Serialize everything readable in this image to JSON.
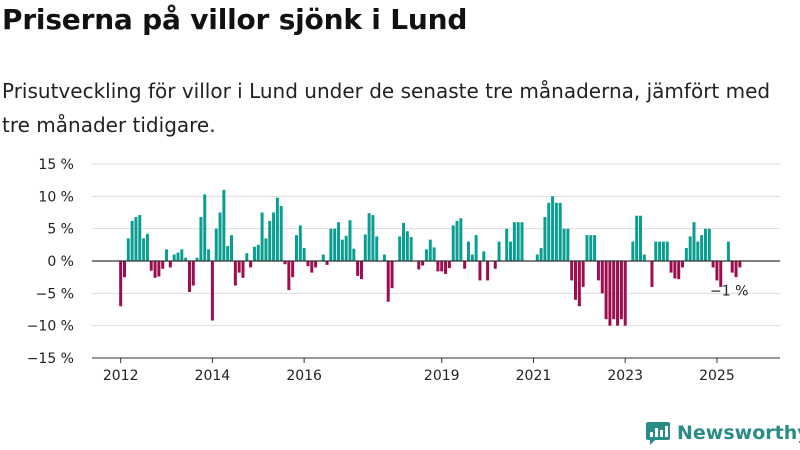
{
  "header": {
    "title": "Priserna på villor sjönk i Lund",
    "subtitle": "Prisutveckling för villor i Lund under de senaste tre månaderna, jämfört med tre månader tidigare."
  },
  "brand": {
    "name": "Newsworthy",
    "icon": "bar-chart-logo-icon",
    "color": "#2a8c86"
  },
  "colors": {
    "positive": "#0a9e91",
    "negative": "#9c0c4e",
    "grid": "#dddddd",
    "baseline": "#333333"
  },
  "chart_data": {
    "type": "bar",
    "xlabel": "",
    "ylabel": "",
    "ylim": [
      -15,
      15
    ],
    "xlim": [
      "2011-06",
      "2026-06"
    ],
    "grid": true,
    "legend": "none",
    "y_ticks": [
      {
        "value": 15,
        "label": "15 %"
      },
      {
        "value": 10,
        "label": "10 %"
      },
      {
        "value": 5,
        "label": "5 %"
      },
      {
        "value": 0,
        "label": "0 %"
      },
      {
        "value": -5,
        "label": "−5 %"
      },
      {
        "value": -10,
        "label": "−10 %"
      },
      {
        "value": -15,
        "label": "−15 %"
      }
    ],
    "x_ticks": [
      {
        "value": "2012-01",
        "label": "2012"
      },
      {
        "value": "2014-01",
        "label": "2014"
      },
      {
        "value": "2016-01",
        "label": "2016"
      },
      {
        "value": "2019-01",
        "label": "2019"
      },
      {
        "value": "2021-01",
        "label": "2021"
      },
      {
        "value": "2023-01",
        "label": "2023"
      },
      {
        "value": "2025-01",
        "label": "2025"
      }
    ],
    "annotation": {
      "x": "2025-06",
      "y": -1,
      "label": "−1 %"
    },
    "series": [
      {
        "values": [
          {
            "x": "2012-01",
            "y": -7
          },
          {
            "x": "2012-02",
            "y": -2.5
          },
          {
            "x": "2012-03",
            "y": 3.5
          },
          {
            "x": "2012-04",
            "y": 6.2
          },
          {
            "x": "2012-05",
            "y": 6.8
          },
          {
            "x": "2012-06",
            "y": 7.1
          },
          {
            "x": "2012-07",
            "y": 3.5
          },
          {
            "x": "2012-08",
            "y": 4.2
          },
          {
            "x": "2012-09",
            "y": -1.5
          },
          {
            "x": "2012-10",
            "y": -2.6
          },
          {
            "x": "2012-11",
            "y": -2.4
          },
          {
            "x": "2012-12",
            "y": -1.2
          },
          {
            "x": "2013-01",
            "y": 1.8
          },
          {
            "x": "2013-02",
            "y": -1.0
          },
          {
            "x": "2013-03",
            "y": 1.0
          },
          {
            "x": "2013-04",
            "y": 1.3
          },
          {
            "x": "2013-05",
            "y": 1.8
          },
          {
            "x": "2013-06",
            "y": 0.5
          },
          {
            "x": "2013-07",
            "y": -4.8
          },
          {
            "x": "2013-08",
            "y": -3.8
          },
          {
            "x": "2013-09",
            "y": 0.5
          },
          {
            "x": "2013-10",
            "y": 6.8
          },
          {
            "x": "2013-11",
            "y": 10.3
          },
          {
            "x": "2013-12",
            "y": 1.8
          },
          {
            "x": "2014-01",
            "y": -9.2
          },
          {
            "x": "2014-02",
            "y": 5.0
          },
          {
            "x": "2014-03",
            "y": 7.5
          },
          {
            "x": "2014-04",
            "y": 11.0
          },
          {
            "x": "2014-05",
            "y": 2.3
          },
          {
            "x": "2014-06",
            "y": 4.0
          },
          {
            "x": "2014-07",
            "y": -3.8
          },
          {
            "x": "2014-08",
            "y": -1.8
          },
          {
            "x": "2014-09",
            "y": -2.6
          },
          {
            "x": "2014-10",
            "y": 1.2
          },
          {
            "x": "2014-11",
            "y": -1.0
          },
          {
            "x": "2014-12",
            "y": 2.2
          },
          {
            "x": "2015-01",
            "y": 2.5
          },
          {
            "x": "2015-02",
            "y": 7.5
          },
          {
            "x": "2015-03",
            "y": 3.5
          },
          {
            "x": "2015-04",
            "y": 6.2
          },
          {
            "x": "2015-05",
            "y": 7.5
          },
          {
            "x": "2015-06",
            "y": 9.8
          },
          {
            "x": "2015-07",
            "y": 8.5
          },
          {
            "x": "2015-08",
            "y": -0.5
          },
          {
            "x": "2015-09",
            "y": -4.5
          },
          {
            "x": "2015-10",
            "y": -2.5
          },
          {
            "x": "2015-11",
            "y": 4.0
          },
          {
            "x": "2015-12",
            "y": 5.5
          },
          {
            "x": "2016-01",
            "y": 2.0
          },
          {
            "x": "2016-02",
            "y": -0.8
          },
          {
            "x": "2016-03",
            "y": -1.8
          },
          {
            "x": "2016-04",
            "y": -1.0
          },
          {
            "x": "2016-05",
            "y": 0.0
          },
          {
            "x": "2016-06",
            "y": 1.0
          },
          {
            "x": "2016-07",
            "y": -0.6
          },
          {
            "x": "2016-08",
            "y": 5.0
          },
          {
            "x": "2016-09",
            "y": 5.0
          },
          {
            "x": "2016-10",
            "y": 6.0
          },
          {
            "x": "2016-11",
            "y": 3.3
          },
          {
            "x": "2016-12",
            "y": 3.9
          },
          {
            "x": "2017-01",
            "y": 6.3
          },
          {
            "x": "2017-02",
            "y": 1.9
          },
          {
            "x": "2017-03",
            "y": -2.3
          },
          {
            "x": "2017-04",
            "y": -2.8
          },
          {
            "x": "2017-05",
            "y": 4.1
          },
          {
            "x": "2017-06",
            "y": 7.4
          },
          {
            "x": "2017-07",
            "y": 7.1
          },
          {
            "x": "2017-08",
            "y": 3.8
          },
          {
            "x": "2017-09",
            "y": 0.0
          },
          {
            "x": "2017-10",
            "y": 1.0
          },
          {
            "x": "2017-11",
            "y": -6.3
          },
          {
            "x": "2017-12",
            "y": -4.2
          },
          {
            "x": "2018-01",
            "y": 0.0
          },
          {
            "x": "2018-02",
            "y": 3.8
          },
          {
            "x": "2018-03",
            "y": 5.9
          },
          {
            "x": "2018-04",
            "y": 4.6
          },
          {
            "x": "2018-05",
            "y": 3.7
          },
          {
            "x": "2018-06",
            "y": 0.0
          },
          {
            "x": "2018-07",
            "y": -1.3
          },
          {
            "x": "2018-08",
            "y": -0.7
          },
          {
            "x": "2018-09",
            "y": 1.8
          },
          {
            "x": "2018-10",
            "y": 3.3
          },
          {
            "x": "2018-11",
            "y": 2.1
          },
          {
            "x": "2018-12",
            "y": -1.6
          },
          {
            "x": "2019-01",
            "y": -1.6
          },
          {
            "x": "2019-02",
            "y": -2.0
          },
          {
            "x": "2019-03",
            "y": -1.1
          },
          {
            "x": "2019-04",
            "y": 5.5
          },
          {
            "x": "2019-05",
            "y": 6.2
          },
          {
            "x": "2019-06",
            "y": 6.6
          },
          {
            "x": "2019-07",
            "y": -1.2
          },
          {
            "x": "2019-08",
            "y": 3.0
          },
          {
            "x": "2019-09",
            "y": 1.0
          },
          {
            "x": "2019-10",
            "y": 4.0
          },
          {
            "x": "2019-11",
            "y": -3.0
          },
          {
            "x": "2019-12",
            "y": 1.5
          },
          {
            "x": "2020-01",
            "y": -3.0
          },
          {
            "x": "2020-02",
            "y": 0.0
          },
          {
            "x": "2020-03",
            "y": -1.2
          },
          {
            "x": "2020-04",
            "y": 3.0
          },
          {
            "x": "2020-05",
            "y": 0.0
          },
          {
            "x": "2020-06",
            "y": 5.0
          },
          {
            "x": "2020-07",
            "y": 3.0
          },
          {
            "x": "2020-08",
            "y": 6.0
          },
          {
            "x": "2020-09",
            "y": 6.0
          },
          {
            "x": "2020-10",
            "y": 6.0
          },
          {
            "x": "2020-11",
            "y": 0.0
          },
          {
            "x": "2020-12",
            "y": 0.0
          },
          {
            "x": "2021-01",
            "y": 0.0
          },
          {
            "x": "2021-02",
            "y": 1.0
          },
          {
            "x": "2021-03",
            "y": 2.0
          },
          {
            "x": "2021-04",
            "y": 6.8
          },
          {
            "x": "2021-05",
            "y": 9.0
          },
          {
            "x": "2021-06",
            "y": 10.0
          },
          {
            "x": "2021-07",
            "y": 9.0
          },
          {
            "x": "2021-08",
            "y": 9.0
          },
          {
            "x": "2021-09",
            "y": 5.0
          },
          {
            "x": "2021-10",
            "y": 5.0
          },
          {
            "x": "2021-11",
            "y": -3.0
          },
          {
            "x": "2021-12",
            "y": -6.0
          },
          {
            "x": "2022-01",
            "y": -7.0
          },
          {
            "x": "2022-02",
            "y": -4.0
          },
          {
            "x": "2022-03",
            "y": 4.0
          },
          {
            "x": "2022-04",
            "y": 4.0
          },
          {
            "x": "2022-05",
            "y": 4.0
          },
          {
            "x": "2022-06",
            "y": -3.0
          },
          {
            "x": "2022-07",
            "y": -5.0
          },
          {
            "x": "2022-08",
            "y": -9.0
          },
          {
            "x": "2022-09",
            "y": -10.0
          },
          {
            "x": "2022-10",
            "y": -9.0
          },
          {
            "x": "2022-11",
            "y": -10.0
          },
          {
            "x": "2022-12",
            "y": -9.0
          },
          {
            "x": "2023-01",
            "y": -10.0
          },
          {
            "x": "2023-02",
            "y": 0.0
          },
          {
            "x": "2023-03",
            "y": 3.0
          },
          {
            "x": "2023-04",
            "y": 7.0
          },
          {
            "x": "2023-05",
            "y": 7.0
          },
          {
            "x": "2023-06",
            "y": 1.0
          },
          {
            "x": "2023-07",
            "y": 0.0
          },
          {
            "x": "2023-08",
            "y": -4.0
          },
          {
            "x": "2023-09",
            "y": 3.0
          },
          {
            "x": "2023-10",
            "y": 3.0
          },
          {
            "x": "2023-11",
            "y": 3.0
          },
          {
            "x": "2023-12",
            "y": 3.0
          },
          {
            "x": "2024-01",
            "y": -1.8
          },
          {
            "x": "2024-02",
            "y": -2.7
          },
          {
            "x": "2024-03",
            "y": -2.8
          },
          {
            "x": "2024-04",
            "y": -1.0
          },
          {
            "x": "2024-05",
            "y": 2.0
          },
          {
            "x": "2024-06",
            "y": 3.8
          },
          {
            "x": "2024-07",
            "y": 6.0
          },
          {
            "x": "2024-08",
            "y": 3.0
          },
          {
            "x": "2024-09",
            "y": 4.0
          },
          {
            "x": "2024-10",
            "y": 5.0
          },
          {
            "x": "2024-11",
            "y": 5.0
          },
          {
            "x": "2024-12",
            "y": -1.0
          },
          {
            "x": "2025-01",
            "y": -3.0
          },
          {
            "x": "2025-02",
            "y": -4.0
          },
          {
            "x": "2025-03",
            "y": 0.0
          },
          {
            "x": "2025-04",
            "y": 3.0
          },
          {
            "x": "2025-05",
            "y": -1.8
          },
          {
            "x": "2025-06",
            "y": -2.5
          },
          {
            "x": "2025-07",
            "y": -1.0
          }
        ]
      }
    ]
  }
}
